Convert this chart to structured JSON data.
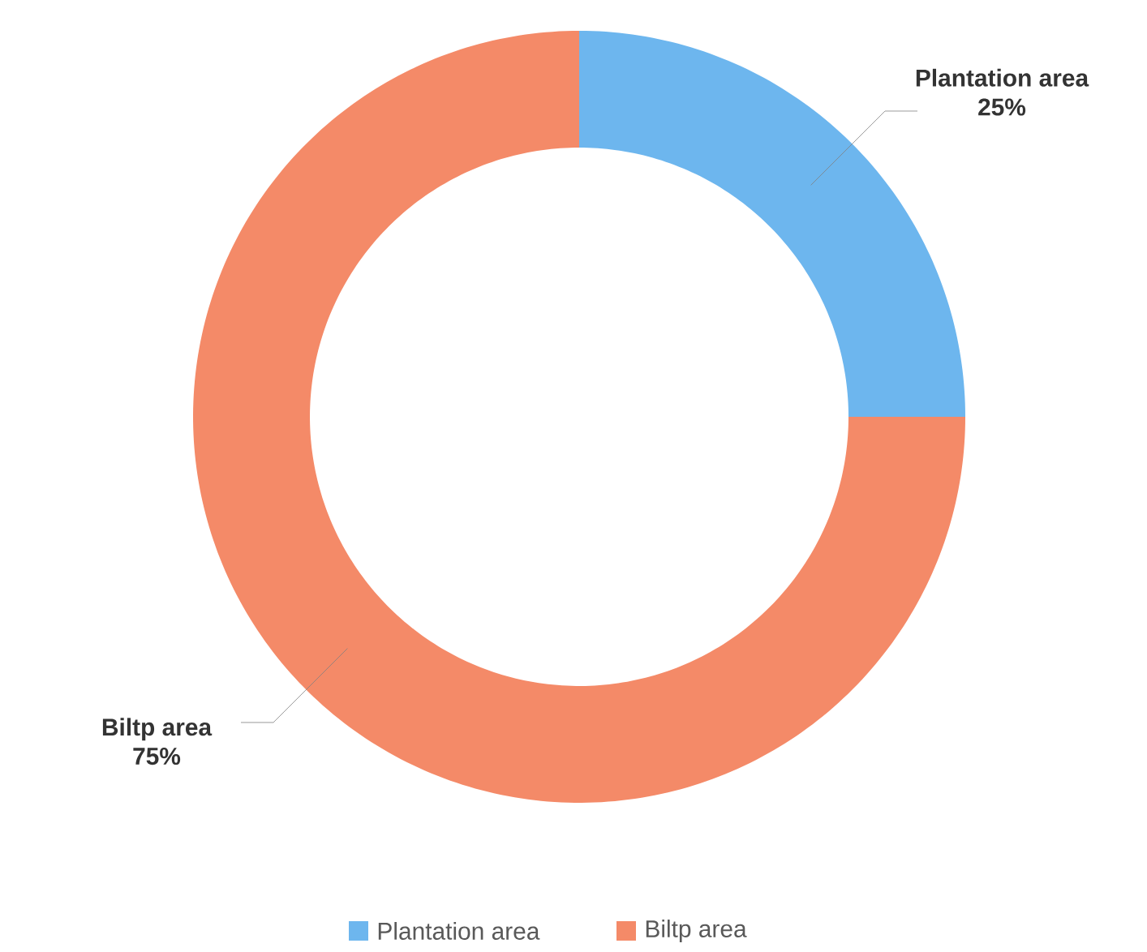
{
  "chart_data": {
    "type": "donut",
    "categories": [
      "Plantation area",
      "Biltp area"
    ],
    "values": [
      25,
      75
    ],
    "colors": [
      "#6db6ee",
      "#f48a68"
    ],
    "value_labels": [
      "25%",
      "75%"
    ],
    "legend": "bottom"
  }
}
